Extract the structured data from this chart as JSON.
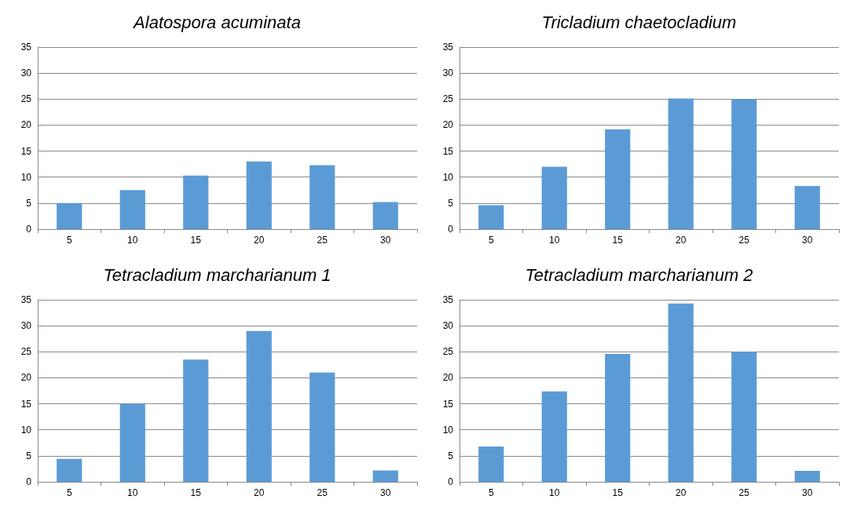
{
  "chart_data": [
    {
      "type": "bar",
      "title": "Alatospora acuminata",
      "categories": [
        "5",
        "10",
        "15",
        "20",
        "25",
        "30"
      ],
      "values": [
        5,
        7.5,
        10.3,
        13,
        12.3,
        5.2
      ],
      "color": "#5b9bd5",
      "ylim": [
        0,
        35
      ],
      "yticks": [
        0,
        5,
        10,
        15,
        20,
        25,
        30,
        35
      ],
      "grid": "y"
    },
    {
      "type": "bar",
      "title": "Tricladium chaetocladium",
      "categories": [
        "5",
        "10",
        "15",
        "20",
        "25",
        "30"
      ],
      "values": [
        4.6,
        12,
        19.2,
        25.1,
        25,
        8.3
      ],
      "color": "#5b9bd5",
      "ylim": [
        0,
        35
      ],
      "yticks": [
        0,
        5,
        10,
        15,
        20,
        25,
        30,
        35
      ],
      "grid": "y"
    },
    {
      "type": "bar",
      "title": "Tetracladium marcharianum 1",
      "categories": [
        "5",
        "10",
        "15",
        "20",
        "25",
        "30"
      ],
      "values": [
        4.4,
        15,
        23.5,
        29,
        21,
        2.2
      ],
      "color": "#5b9bd5",
      "ylim": [
        0,
        35
      ],
      "yticks": [
        0,
        5,
        10,
        15,
        20,
        25,
        30,
        35
      ],
      "grid": "y"
    },
    {
      "type": "bar",
      "title": "Tetracladium marcharianum 2",
      "categories": [
        "5",
        "10",
        "15",
        "20",
        "25",
        "30"
      ],
      "values": [
        6.8,
        17.4,
        24.6,
        34.3,
        25,
        2.1
      ],
      "color": "#5b9bd5",
      "ylim": [
        0,
        35
      ],
      "yticks": [
        0,
        5,
        10,
        15,
        20,
        25,
        30,
        35
      ],
      "grid": "y"
    }
  ]
}
